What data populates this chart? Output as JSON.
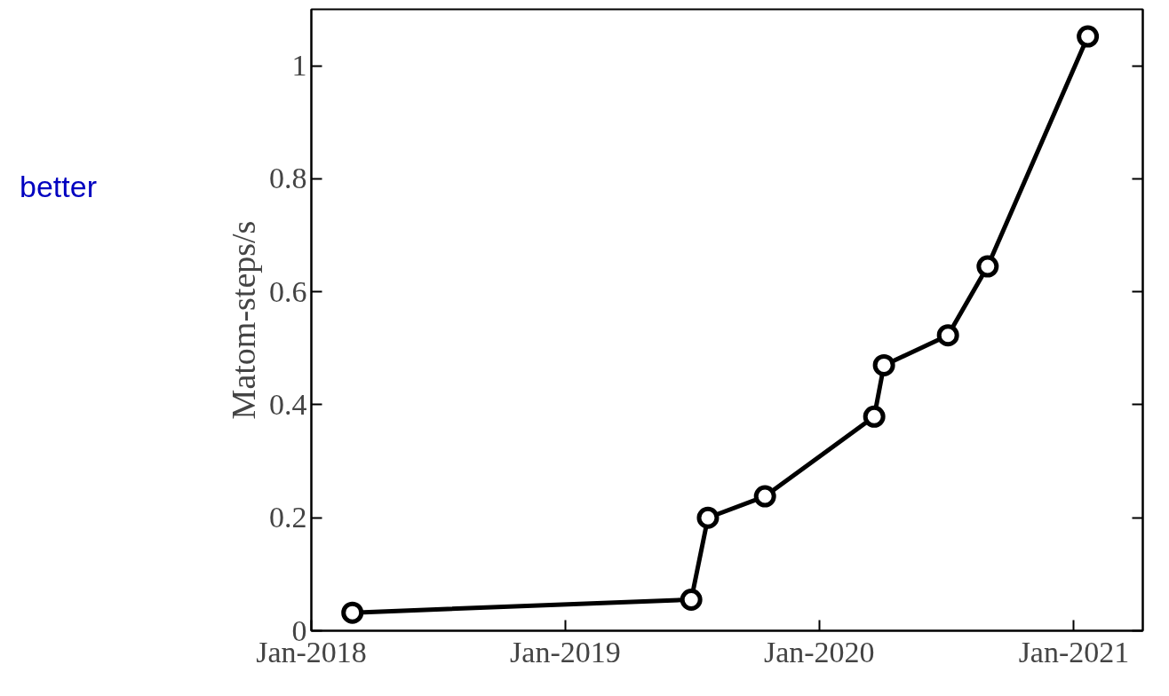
{
  "chart_data": {
    "type": "line",
    "ylabel": "Matom-steps/s",
    "x": [
      "2018-03-01",
      "2019-07-01",
      "2019-07-25",
      "2019-10-15",
      "2020-03-20",
      "2020-04-03",
      "2020-07-04",
      "2020-08-30",
      "2021-01-21"
    ],
    "series": [
      {
        "color": "#000000",
        "values": [
          0.032,
          0.055,
          0.2,
          0.238,
          0.379,
          0.47,
          0.523,
          0.645,
          1.052
        ]
      }
    ],
    "xlim": [
      "2018-01-01",
      "2021-04-10"
    ],
    "xticks": [
      {
        "value": "2018-01-01",
        "label": "Jan-2018"
      },
      {
        "value": "2019-01-01",
        "label": "Jan-2019"
      },
      {
        "value": "2020-01-01",
        "label": "Jan-2020"
      },
      {
        "value": "2021-01-01",
        "label": "Jan-2021"
      }
    ],
    "ylim": [
      0,
      1.1
    ],
    "yticks": [
      0,
      0.2,
      0.4,
      0.6,
      0.8,
      1
    ],
    "marker": "circle",
    "line_style": "solid",
    "grid": false,
    "annotations": [
      "better"
    ]
  }
}
